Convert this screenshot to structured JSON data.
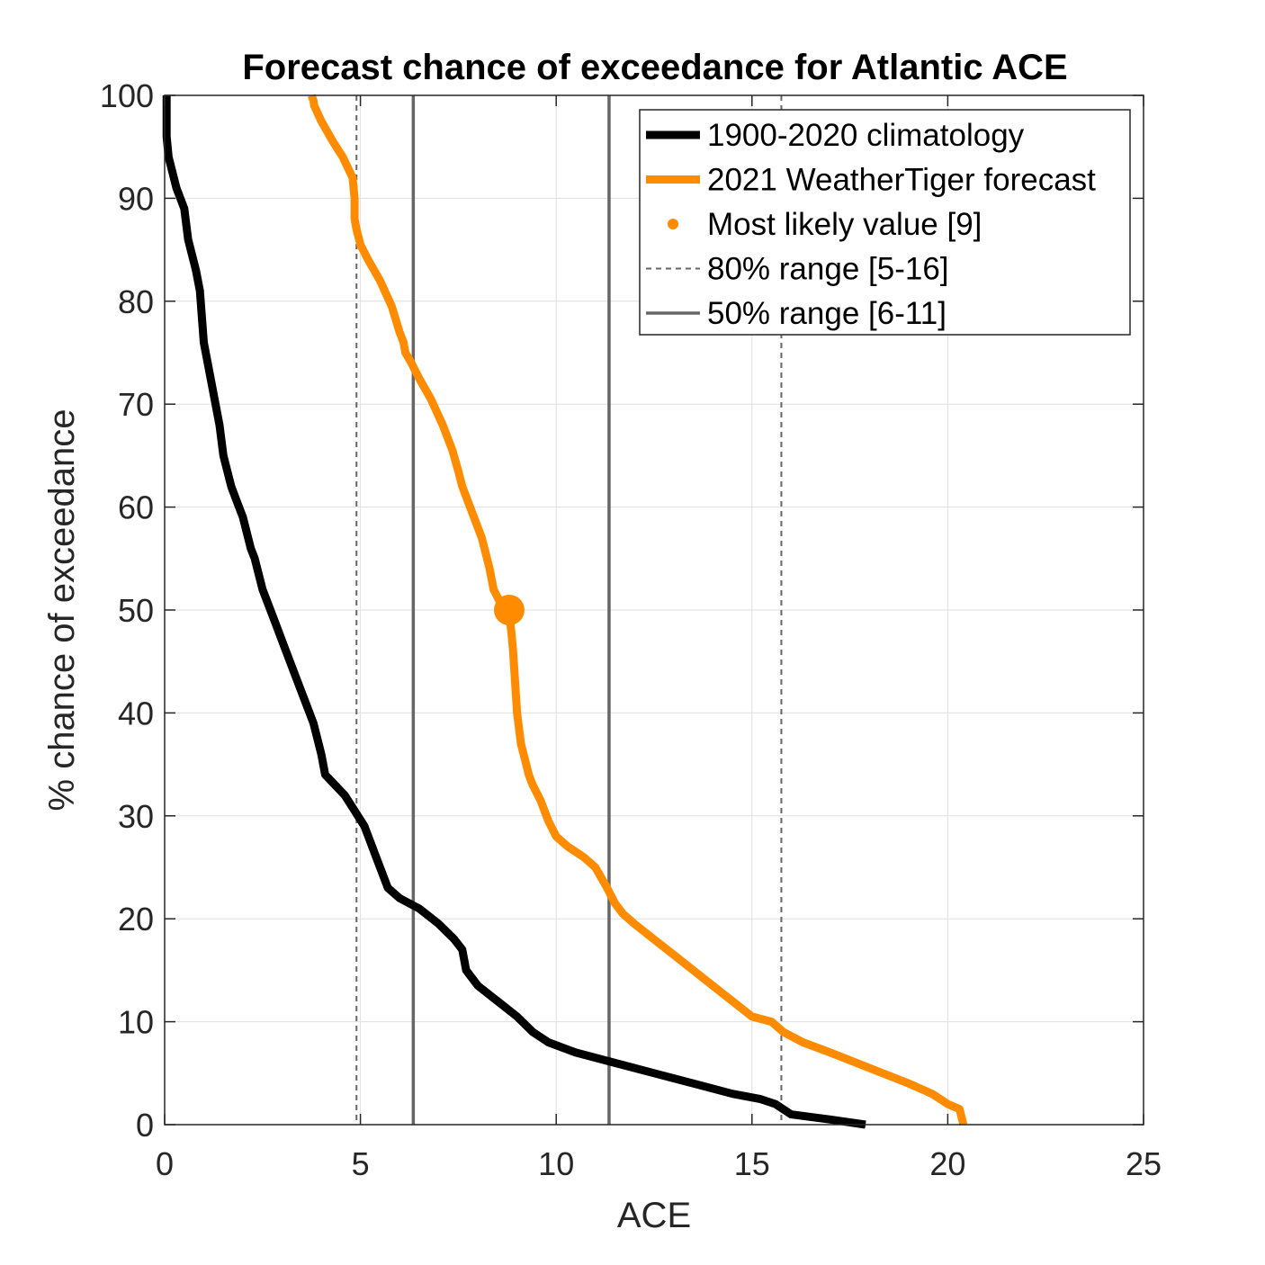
{
  "chart_data": {
    "type": "line",
    "title": "Forecast chance of exceedance for Atlantic ACE",
    "xlabel": "ACE",
    "ylabel": "% chance of exceedance",
    "xlim": [
      0,
      25
    ],
    "ylim": [
      0,
      100
    ],
    "xticks": [
      0,
      5,
      10,
      15,
      20,
      25
    ],
    "yticks": [
      0,
      10,
      20,
      30,
      40,
      50,
      60,
      70,
      80,
      90,
      100
    ],
    "grid": true,
    "legend_position": "top-right",
    "series": [
      {
        "name": "1900-2020 climatology",
        "color": "#000000",
        "style": "solid",
        "x": [
          0.05,
          0.05,
          0.05,
          0.1,
          0.3,
          0.5,
          0.6,
          0.8,
          0.9,
          1.0,
          1.2,
          1.4,
          1.5,
          1.7,
          1.8,
          2.0,
          2.2,
          2.3,
          2.5,
          2.8,
          3.1,
          3.5,
          3.8,
          4.0,
          4.1,
          4.6,
          5.1,
          5.3,
          5.4,
          5.7,
          6.0,
          6.5,
          7.0,
          7.4,
          7.6,
          7.7,
          8.0,
          8.5,
          9.0,
          9.4,
          9.8,
          10.5,
          11.5,
          12.5,
          13.5,
          14.5,
          15.2,
          15.6,
          16.0,
          17.0,
          17.9
        ],
        "y": [
          100,
          99,
          96,
          94,
          91,
          89,
          86,
          83,
          81,
          76,
          72,
          68,
          65,
          62,
          61,
          59,
          56,
          55,
          52,
          49,
          46,
          42,
          39,
          36,
          34,
          32,
          29,
          27,
          26,
          23,
          22,
          21,
          19.5,
          18,
          17,
          15,
          13.5,
          12,
          10.5,
          9,
          8,
          7,
          6,
          5,
          4,
          3,
          2.5,
          2,
          1,
          0.5,
          0
        ],
        "line_width": 8
      },
      {
        "name": "2021 WeatherTiger forecast",
        "color": "#ff8c00",
        "style": "solid",
        "x": [
          3.75,
          3.8,
          3.82,
          4.0,
          4.3,
          4.55,
          4.8,
          4.85,
          4.85,
          4.9,
          5.0,
          5.2,
          5.5,
          5.8,
          6.0,
          6.1,
          6.15,
          6.3,
          6.5,
          6.8,
          7.1,
          7.35,
          7.5,
          7.6,
          7.8,
          8.1,
          8.3,
          8.4,
          8.6,
          8.75,
          8.8,
          8.85,
          8.9,
          8.95,
          9.0,
          9.1,
          9.2,
          9.3,
          9.4,
          9.6,
          9.8,
          10.0,
          10.3,
          10.7,
          11.0,
          11.3,
          11.5,
          11.7,
          12.0,
          12.5,
          13.0,
          13.5,
          14.0,
          14.5,
          15.0,
          15.5,
          15.8,
          16.3,
          17.0,
          18.0,
          19.0,
          19.6,
          20.0,
          20.3,
          20.4
        ],
        "y": [
          100,
          99.5,
          99,
          97.5,
          95.5,
          94,
          92,
          90,
          88,
          87,
          85.5,
          84,
          82,
          79.5,
          77,
          76,
          75,
          74,
          72.5,
          70.5,
          68,
          65.5,
          63.5,
          62,
          60,
          57,
          54,
          52,
          50.5,
          50,
          49.5,
          48,
          46,
          43,
          40,
          37,
          35.5,
          34,
          33,
          31.5,
          29.5,
          28,
          27,
          26,
          25,
          23,
          21.5,
          20.5,
          19.5,
          18,
          16.5,
          15,
          13.5,
          12,
          10.5,
          10,
          9,
          8,
          7,
          5.5,
          4,
          3,
          2,
          1.5,
          0
        ]
      }
    ],
    "markers": [
      {
        "name": "Most likely value [9]",
        "x": 8.8,
        "y": 50,
        "color": "#ff8c00"
      }
    ],
    "vertical_lines": [
      {
        "name": "80% range [5-16]",
        "values": [
          4.9,
          15.75
        ],
        "style": "dashed",
        "color": "#666666"
      },
      {
        "name": "50% range [6-11]",
        "values": [
          6.35,
          11.35
        ],
        "style": "solid",
        "color": "#666666"
      }
    ],
    "legend": [
      {
        "label": "1900-2020 climatology",
        "kind": "line",
        "color": "#000000"
      },
      {
        "label": "2021 WeatherTiger forecast",
        "kind": "line",
        "color": "#ff8c00"
      },
      {
        "label": "Most likely value [9]",
        "kind": "marker",
        "color": "#ff8c00"
      },
      {
        "label": "80% range [5-16]",
        "kind": "dashed",
        "color": "#666666"
      },
      {
        "label": "50% range [6-11]",
        "kind": "solid",
        "color": "#666666"
      }
    ]
  }
}
